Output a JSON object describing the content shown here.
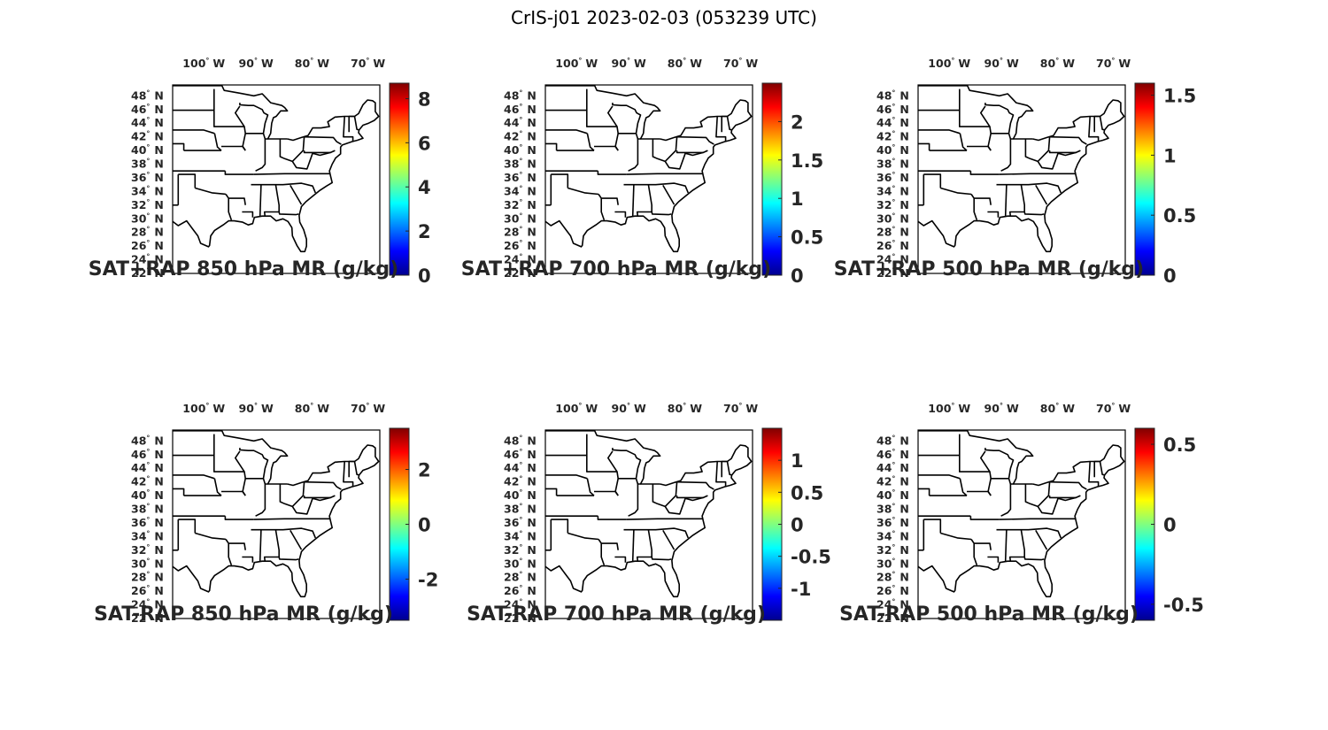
{
  "figure_title": "CrIS-j01 2023-02-03 (053239 UTC)",
  "colormap": [
    "#00008f",
    "#0000ff",
    "#0080ff",
    "#00ffff",
    "#80ff80",
    "#ffff00",
    "#ff8000",
    "#ff0000",
    "#800000"
  ],
  "chart_data": [
    {
      "type": "heatmap",
      "title": "SAT+RAP 850 hPa MR (g/kg)",
      "lon_ticks": [
        "100",
        "90",
        "80",
        "70"
      ],
      "lon_hemisphere": "W",
      "lat_ticks": [
        "48",
        "46",
        "44",
        "42",
        "40",
        "38",
        "36",
        "34",
        "32",
        "30",
        "28",
        "26",
        "24",
        "22"
      ],
      "lat_hemisphere": "N",
      "colorbar": {
        "min": 0,
        "max": 8.7,
        "ticks": [
          0,
          2,
          4,
          6,
          8
        ],
        "tick_labels": [
          "0",
          "2",
          "4",
          "6",
          "8"
        ]
      }
    },
    {
      "type": "heatmap",
      "title": "SAT+RAP 700 hPa MR (g/kg)",
      "lon_ticks": [
        "100",
        "90",
        "80",
        "70"
      ],
      "lon_hemisphere": "W",
      "lat_ticks": [
        "48",
        "46",
        "44",
        "42",
        "40",
        "38",
        "36",
        "34",
        "32",
        "30",
        "28",
        "26",
        "24",
        "22"
      ],
      "lat_hemisphere": "N",
      "colorbar": {
        "min": 0,
        "max": 2.5,
        "ticks": [
          0,
          0.5,
          1,
          1.5,
          2
        ],
        "tick_labels": [
          "0",
          "0.5",
          "1",
          "1.5",
          "2"
        ]
      }
    },
    {
      "type": "heatmap",
      "title": "SAT+RAP 500 hPa MR (g/kg)",
      "lon_ticks": [
        "100",
        "90",
        "80",
        "70"
      ],
      "lon_hemisphere": "W",
      "lat_ticks": [
        "48",
        "46",
        "44",
        "42",
        "40",
        "38",
        "36",
        "34",
        "32",
        "30",
        "28",
        "26",
        "24",
        "22"
      ],
      "lat_hemisphere": "N",
      "colorbar": {
        "min": 0,
        "max": 1.6,
        "ticks": [
          0,
          0.5,
          1,
          1.5
        ],
        "tick_labels": [
          "0",
          "0.5",
          "1",
          "1.5"
        ]
      }
    },
    {
      "type": "heatmap",
      "title": "SAT-RAP 850 hPa MR (g/kg)",
      "lon_ticks": [
        "100",
        "90",
        "80",
        "70"
      ],
      "lon_hemisphere": "W",
      "lat_ticks": [
        "48",
        "46",
        "44",
        "42",
        "40",
        "38",
        "36",
        "34",
        "32",
        "30",
        "28",
        "26",
        "24",
        "22"
      ],
      "lat_hemisphere": "N",
      "colorbar": {
        "min": -3.5,
        "max": 3.5,
        "ticks": [
          -2,
          0,
          2
        ],
        "tick_labels": [
          "-2",
          "0",
          "2"
        ]
      }
    },
    {
      "type": "heatmap",
      "title": "SAT-RAP 700 hPa MR (g/kg)",
      "lon_ticks": [
        "100",
        "90",
        "80",
        "70"
      ],
      "lon_hemisphere": "W",
      "lat_ticks": [
        "48",
        "46",
        "44",
        "42",
        "40",
        "38",
        "36",
        "34",
        "32",
        "30",
        "28",
        "26",
        "24",
        "22"
      ],
      "lat_hemisphere": "N",
      "colorbar": {
        "min": -1.5,
        "max": 1.5,
        "ticks": [
          -1,
          -0.5,
          0,
          0.5,
          1
        ],
        "tick_labels": [
          "-1",
          "-0.5",
          "0",
          "0.5",
          "1"
        ]
      }
    },
    {
      "type": "heatmap",
      "title": "SAT-RAP 500 hPa MR (g/kg)",
      "lon_ticks": [
        "100",
        "90",
        "80",
        "70"
      ],
      "lon_hemisphere": "W",
      "lat_ticks": [
        "48",
        "46",
        "44",
        "42",
        "40",
        "38",
        "36",
        "34",
        "32",
        "30",
        "28",
        "26",
        "24",
        "22"
      ],
      "lat_hemisphere": "N",
      "colorbar": {
        "min": -0.6,
        "max": 0.6,
        "ticks": [
          -0.5,
          0,
          0.5
        ],
        "tick_labels": [
          "-0.5",
          "0",
          "0.5"
        ]
      }
    }
  ]
}
